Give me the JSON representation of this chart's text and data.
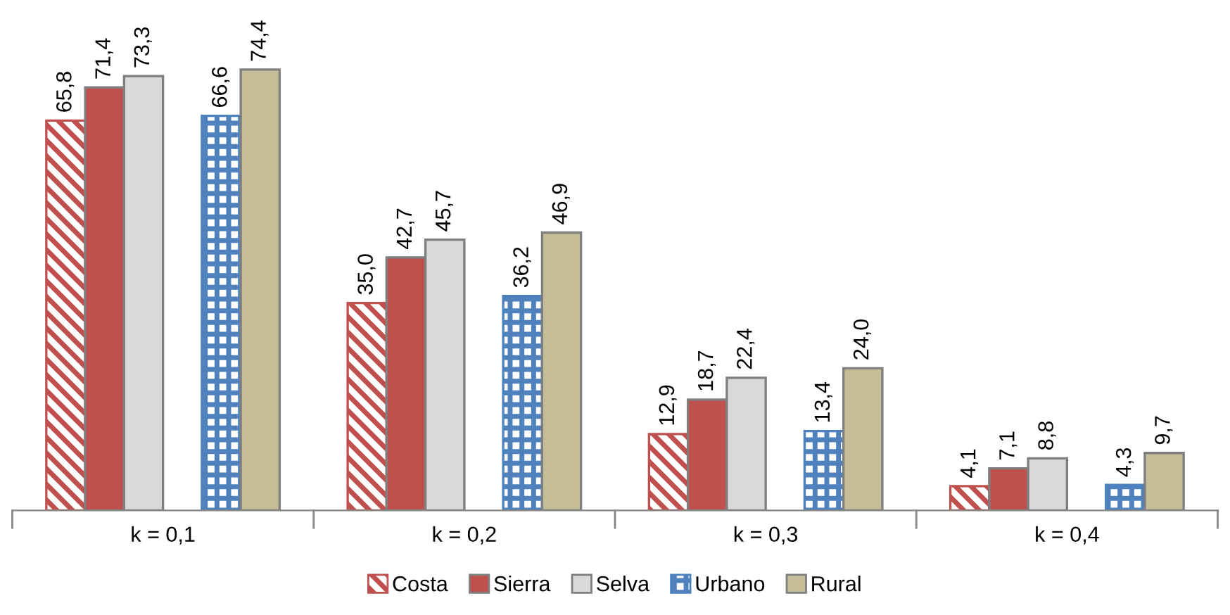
{
  "chart_data": {
    "type": "bar",
    "categories": [
      "k = 0,1",
      "k = 0,2",
      "k = 0,3",
      "k = 0,4"
    ],
    "series": [
      {
        "name": "Costa",
        "color": "#c0504d",
        "values": [
          65.8,
          35.0,
          12.9,
          4.1
        ],
        "value_labels": [
          "65,8",
          "35,0",
          "12,9",
          "4,1"
        ]
      },
      {
        "name": "Sierra",
        "color": "#c0504d",
        "values": [
          71.4,
          42.7,
          18.7,
          7.1
        ],
        "value_labels": [
          "71,4",
          "42,7",
          "18,7",
          "7,1"
        ]
      },
      {
        "name": "Selva",
        "color": "#d9d9d9",
        "values": [
          73.3,
          45.7,
          22.4,
          8.8
        ],
        "value_labels": [
          "73,3",
          "45,7",
          "22,4",
          "8,8"
        ]
      },
      {
        "name": "Urbano",
        "color": "#4f81bd",
        "values": [
          66.6,
          36.2,
          13.4,
          4.3
        ],
        "value_labels": [
          "66,6",
          "36,2",
          "13,4",
          "4,3"
        ]
      },
      {
        "name": "Rural",
        "color": "#c4bd97",
        "values": [
          74.4,
          46.9,
          24.0,
          9.7
        ],
        "value_labels": [
          "74,4",
          "46,9",
          "24,0",
          "9,7"
        ]
      }
    ],
    "legend": "bottom",
    "grid": false
  }
}
